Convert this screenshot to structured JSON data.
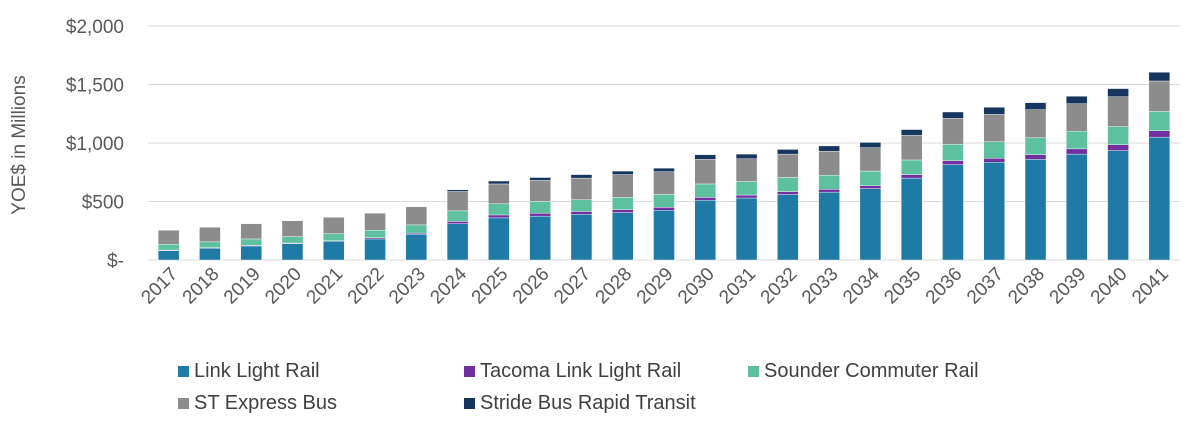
{
  "chart_data": {
    "type": "bar",
    "stacked": true,
    "ylabel": "YOE$ in Millions",
    "ylim": [
      0,
      2000
    ],
    "y_ticks": [
      0,
      500,
      1000,
      1500,
      2000
    ],
    "y_tick_labels": [
      "$-",
      "$500",
      "$1,000",
      "$1,500",
      "$2,000"
    ],
    "grid": true,
    "legend_position": "bottom",
    "categories": [
      "2017",
      "2018",
      "2019",
      "2020",
      "2021",
      "2022",
      "2023",
      "2024",
      "2025",
      "2026",
      "2027",
      "2028",
      "2029",
      "2030",
      "2031",
      "2032",
      "2033",
      "2034",
      "2035",
      "2036",
      "2037",
      "2038",
      "2039",
      "2040",
      "2041"
    ],
    "series": [
      {
        "name": "Link Light Rail",
        "color": "#1f7ba6",
        "values": [
          80,
          100,
          120,
          140,
          160,
          180,
          220,
          310,
          360,
          375,
          390,
          405,
          425,
          510,
          530,
          560,
          580,
          610,
          700,
          815,
          835,
          860,
          905,
          935,
          1050
        ]
      },
      {
        "name": "Tacoma Link Light Rail",
        "color": "#7030a0",
        "values": [
          5,
          5,
          5,
          5,
          5,
          10,
          10,
          20,
          25,
          25,
          25,
          25,
          25,
          25,
          25,
          25,
          25,
          25,
          30,
          35,
          35,
          40,
          45,
          50,
          55
        ]
      },
      {
        "name": "Sounder Commuter Rail",
        "color": "#5dc1a0",
        "values": [
          50,
          50,
          55,
          55,
          60,
          65,
          70,
          90,
          95,
          100,
          100,
          105,
          110,
          115,
          115,
          120,
          120,
          125,
          125,
          140,
          140,
          145,
          150,
          155,
          165
        ]
      },
      {
        "name": "ST Express Bus",
        "color": "#8c8c8c",
        "values": [
          120,
          125,
          130,
          135,
          140,
          145,
          155,
          165,
          170,
          180,
          185,
          195,
          195,
          210,
          195,
          200,
          205,
          200,
          210,
          220,
          235,
          240,
          235,
          255,
          260
        ]
      },
      {
        "name": "Stride Bus Rapid Transit",
        "color": "#17365d",
        "values": [
          0,
          0,
          0,
          0,
          0,
          0,
          0,
          15,
          25,
          25,
          30,
          30,
          30,
          40,
          40,
          40,
          45,
          45,
          50,
          55,
          60,
          60,
          65,
          70,
          75
        ]
      }
    ]
  }
}
